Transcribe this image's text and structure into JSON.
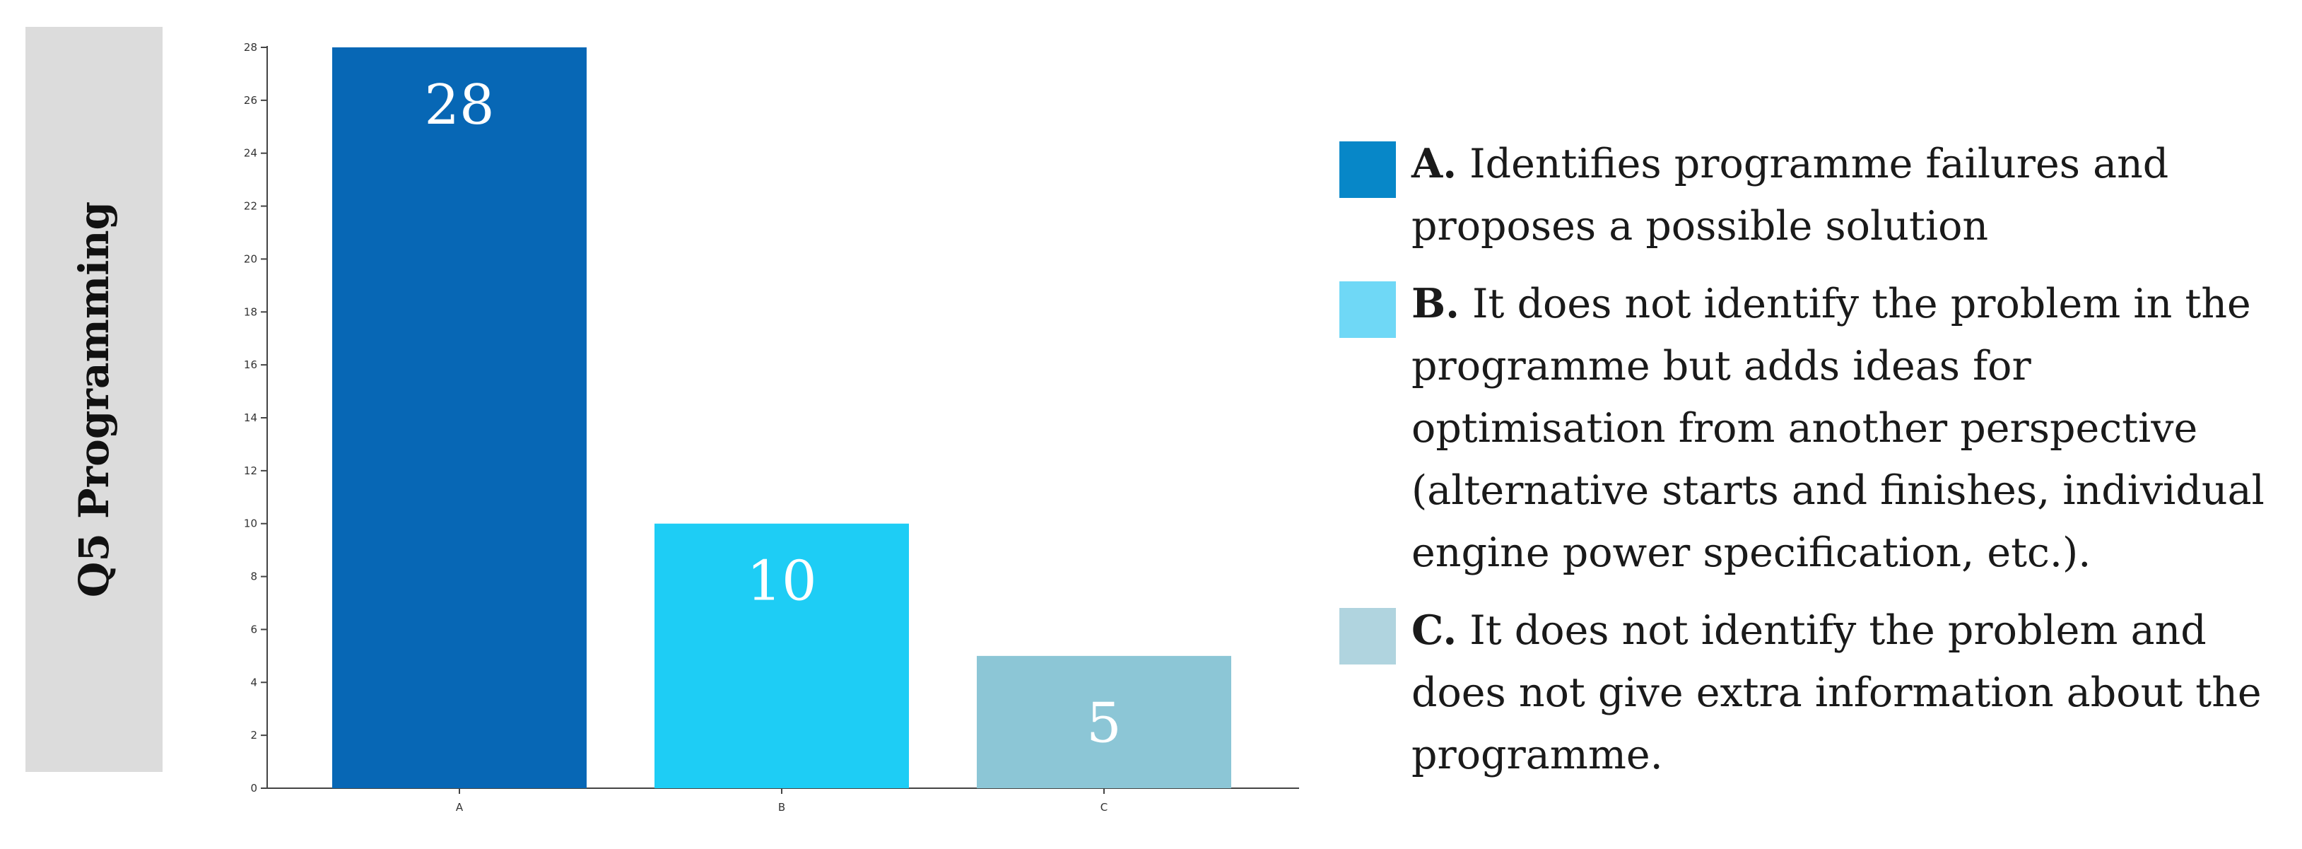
{
  "side_title": "Q5 Programming",
  "chart_data": {
    "type": "bar",
    "categories": [
      "A",
      "B",
      "C"
    ],
    "values": [
      28,
      10,
      5
    ],
    "colors": [
      "#0767b5",
      "#1ecdf5",
      "#8cc6d6"
    ],
    "ylim": [
      0,
      28
    ],
    "yticks": [
      0,
      2,
      4,
      6,
      8,
      10,
      12,
      14,
      16,
      18,
      20,
      22,
      24,
      26,
      28
    ],
    "title": "",
    "xlabel": "",
    "ylabel": "",
    "data_labels": [
      "28",
      "10",
      "5"
    ],
    "grid": false,
    "legend_position": "right"
  },
  "legend": {
    "items": [
      {
        "letter": "A.",
        "text": "Identifies programme failures and proposes a possible solution",
        "color": "#0787c8"
      },
      {
        "letter": "B.",
        "text": "It does not identify the problem in the programme but adds ideas for optimisation from another perspective (alternative starts and finishes, individual engine power specification, etc.).",
        "color": "#6fd8f6"
      },
      {
        "letter": "C.",
        "text": "It does not identify the problem and does not give extra information about the programme.",
        "color": "#b0d4df"
      }
    ]
  }
}
